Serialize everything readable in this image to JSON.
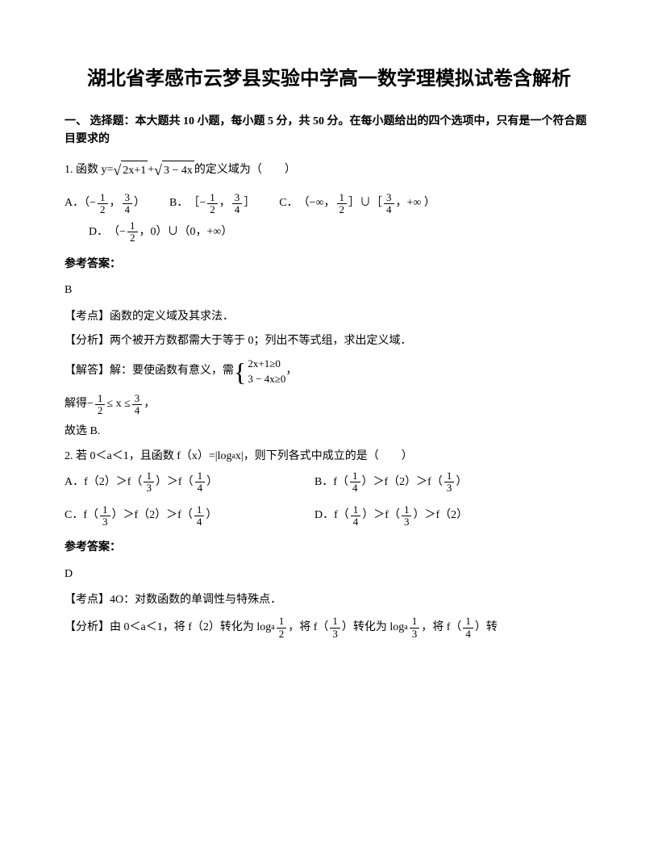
{
  "title": "湖北省孝感市云梦县实验中学高一数学理模拟试卷含解析",
  "section_header": "一、 选择题：本大题共 10 小题，每小题 5 分，共 50 分。在每小题给出的四个选项中，只有是一个符合题目要求的",
  "q1": {
    "prefix": "1. 函数 y=",
    "sqrt1": "2x+1",
    "plus": " +",
    "sqrt2": "3 − 4x",
    "suffix": "的定义域为（　　）",
    "optA_label": "A．（−",
    "optA_f1n": "1",
    "optA_f1d": "2",
    "optA_mid": "，",
    "optA_f2n": "3",
    "optA_f2d": "4",
    "optA_end": "）",
    "optB_label": "B．",
    "optB_open": "［−",
    "optB_f1n": "1",
    "optB_f1d": "2",
    "optB_mid": "，",
    "optB_f2n": "3",
    "optB_f2d": "4",
    "optB_close": "］",
    "optC_label": "C．",
    "optC_open": "（−∞，",
    "optC_f1n": "1",
    "optC_f1d": "2",
    "optC_mid": "］∪［",
    "optC_f2n": "3",
    "optC_f2d": "4",
    "optC_close": "，+∞ ）",
    "optD_label": "D．",
    "optD_open": "（−",
    "optD_f1n": "1",
    "optD_f1d": "2",
    "optD_mid": "，0）∪（0，+∞）",
    "answer_label": "参考答案：",
    "answer": "B",
    "kaodian": "【考点】函数的定义域及其求法．",
    "fenxi": "【分析】两个被开方数都需大于等于 0；列出不等式组，求出定义域．",
    "jieda_pre": "【解答】解：要使函数有意义，需",
    "sys1": "2x+1≥0",
    "sys2": "3 − 4x≥0",
    "jieda_post": "，",
    "jiede_pre": "解得 ",
    "jiede_open": "−",
    "jiede_f1n": "1",
    "jiede_f1d": "2",
    "jiede_mid": "≤ x ≤",
    "jiede_f2n": "3",
    "jiede_f2d": "4",
    "jiede_close": "，",
    "guxuan": "故选 B."
  },
  "q2": {
    "stem_pre": "2. 若 0＜a＜1，且函数 f（x）=|log",
    "stem_sub": "a",
    "stem_post": "x|，则下列各式中成立的是（　　）",
    "A_pre": "A．f（2）＞f（",
    "A_f1n": "1",
    "A_f1d": "3",
    "A_mid": "）＞f（",
    "A_f2n": "1",
    "A_f2d": "4",
    "A_end": "）",
    "B_pre": "B．f（",
    "B_f1n": "1",
    "B_f1d": "4",
    "B_mid": "）＞f（2）＞f（",
    "B_f2n": "1",
    "B_f2d": "3",
    "B_end": "）",
    "C_pre": "C．f（",
    "C_f1n": "1",
    "C_f1d": "3",
    "C_mid": "）＞f（2）＞f（",
    "C_f2n": "1",
    "C_f2d": "4",
    "C_end": "）",
    "D_pre": "D．f（",
    "D_f1n": "1",
    "D_f1d": "4",
    "D_mid": "）＞f（",
    "D_f2n": "1",
    "D_f2d": "3",
    "D_end": "）＞f（2）",
    "answer_label": "参考答案：",
    "answer": "D",
    "kaodian": "【考点】4O：对数函数的单调性与特殊点．",
    "fenxi_pre": "【分析】由 0＜a＜1，将 f（2）转化为 log",
    "fenxi_sub1": "a",
    "fenxi_f1n": "1",
    "fenxi_f1d": "2",
    "fenxi_mid1": "，将 f（",
    "fenxi_f2n": "1",
    "fenxi_f2d": "3",
    "fenxi_mid2": "）转化为 log",
    "fenxi_sub2": "a",
    "fenxi_f3n": "1",
    "fenxi_f3d": "3",
    "fenxi_mid3": "，将 f（",
    "fenxi_f4n": "1",
    "fenxi_f4d": "4",
    "fenxi_end": "）转"
  }
}
